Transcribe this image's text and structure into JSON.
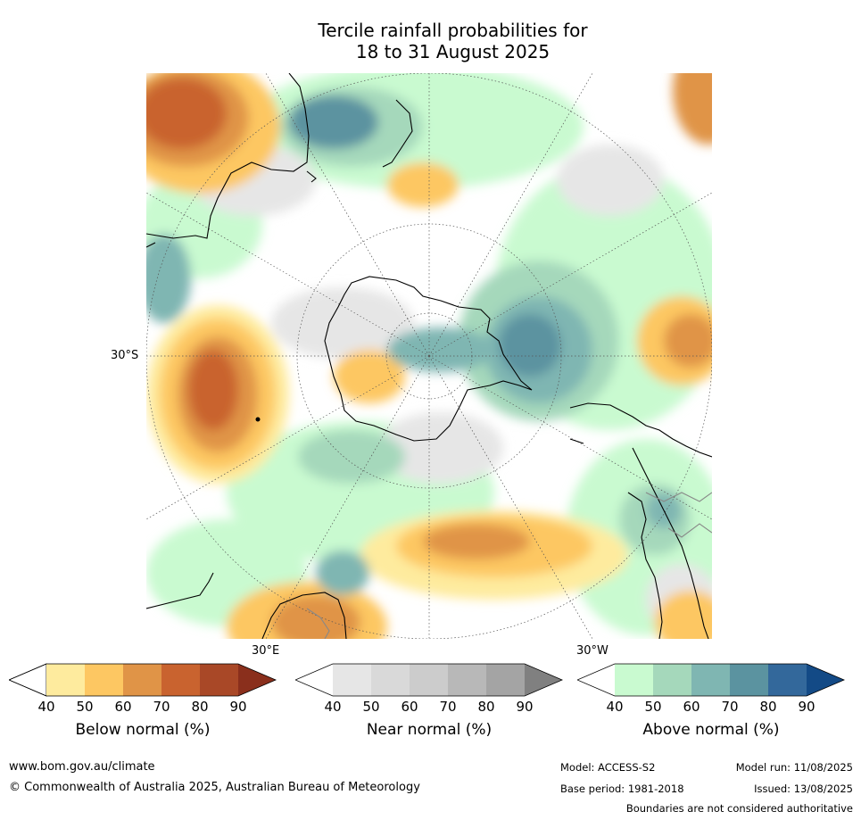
{
  "title_line1": "Tercile rainfall probabilities for",
  "title_line2": "18 to 31 August 2025",
  "labels": {
    "lat": "30°S",
    "lon_east": "30°E",
    "lon_west": "30°W"
  },
  "colorbars": [
    {
      "title": "Below normal (%)",
      "ticks": [
        "40",
        "50",
        "60",
        "70",
        "80",
        "90"
      ],
      "colors": [
        "#ffffff",
        "#feeb9e",
        "#fdc762",
        "#e09447",
        "#c9632f",
        "#a94827",
        "#8a2f1c"
      ]
    },
    {
      "title": "Near normal (%)",
      "ticks": [
        "40",
        "50",
        "60",
        "70",
        "80",
        "90"
      ],
      "colors": [
        "#ffffff",
        "#e6e6e6",
        "#d9d9d9",
        "#cccccc",
        "#b8b8b8",
        "#a4a4a4",
        "#808080"
      ]
    },
    {
      "title": "Above normal (%)",
      "ticks": [
        "40",
        "50",
        "60",
        "70",
        "80",
        "90"
      ],
      "colors": [
        "#ffffff",
        "#c9fad0",
        "#a5d8bb",
        "#7fb6b2",
        "#5b93a0",
        "#33689b",
        "#134a86"
      ]
    }
  ],
  "footer": {
    "url": "www.bom.gov.au/climate",
    "copyright": "© Commonwealth of Australia 2025, Australian Bureau of Meteorology",
    "model": "Model: ACCESS-S2",
    "model_run": "Model run: 11/08/2025",
    "base_period": "Base period: 1981-2018",
    "issued": "Issued: 13/08/2025",
    "disclaimer": "Boundaries are not considered authoritative"
  }
}
